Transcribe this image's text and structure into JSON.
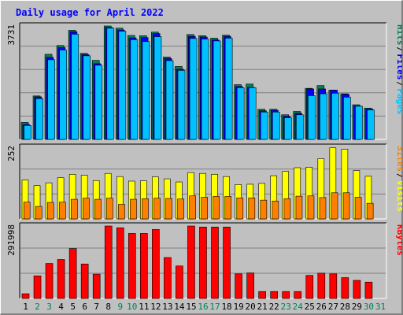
{
  "title": "Daily usage for April 2022",
  "colors": {
    "background": "#c0c0c0",
    "plot_bg": "#c0c0c0",
    "grid": "#808080",
    "title": "#0000ff",
    "hits": "#00805c",
    "files": "#0000ff",
    "pages": "#00c0ff",
    "visits": "#ffff00",
    "sites": "#ff8000",
    "kbytes": "#ff0000",
    "weekday_label": "#000000",
    "weekend_label": "#00805c"
  },
  "chart_data": [
    {
      "type": "bar",
      "panel": "hits-files-pages",
      "categories": [
        "1",
        "2",
        "3",
        "4",
        "5",
        "6",
        "7",
        "8",
        "9",
        "10",
        "11",
        "12",
        "13",
        "14",
        "15",
        "16",
        "17",
        "18",
        "19",
        "20",
        "21",
        "22",
        "23",
        "24",
        "25",
        "26",
        "27",
        "28",
        "29",
        "30",
        "31"
      ],
      "weekend_days": [
        "2",
        "3",
        "9",
        "10",
        "16",
        "17",
        "23",
        "24",
        "30",
        "31"
      ],
      "axis_max_label": "3731",
      "ylim": [
        0,
        3731
      ],
      "legend": [
        "Pages",
        "Files",
        "Hits"
      ],
      "series": [
        {
          "name": "Hits",
          "values": [
            560,
            1430,
            2800,
            3090,
            3590,
            2830,
            2600,
            3731,
            3660,
            3420,
            3410,
            3530,
            2710,
            2400,
            3450,
            3410,
            3330,
            3430,
            1800,
            1820,
            990,
            990,
            810,
            920,
            1680,
            1770,
            1620,
            1500,
            1140,
            1030,
            null
          ]
        },
        {
          "name": "Files",
          "values": [
            490,
            1400,
            2700,
            3020,
            3540,
            2790,
            2490,
            3680,
            3600,
            3340,
            3350,
            3480,
            2660,
            2310,
            3390,
            3370,
            3270,
            3390,
            1740,
            1710,
            940,
            960,
            760,
            860,
            1660,
            1660,
            1620,
            1480,
            1100,
            1000,
            null
          ]
        },
        {
          "name": "Pages",
          "values": [
            460,
            1340,
            2620,
            2940,
            3460,
            2750,
            2440,
            3660,
            3560,
            3280,
            3220,
            3380,
            2590,
            2270,
            3320,
            3300,
            3240,
            3330,
            1700,
            1700,
            900,
            900,
            710,
            810,
            1440,
            1500,
            1520,
            1390,
            1090,
            970,
            null
          ]
        }
      ]
    },
    {
      "type": "bar",
      "panel": "visits-sites",
      "categories": [
        "1",
        "2",
        "3",
        "4",
        "5",
        "6",
        "7",
        "8",
        "9",
        "10",
        "11",
        "12",
        "13",
        "14",
        "15",
        "16",
        "17",
        "18",
        "19",
        "20",
        "21",
        "22",
        "23",
        "24",
        "25",
        "26",
        "27",
        "28",
        "29",
        "30",
        "31"
      ],
      "axis_max_label": "252",
      "ylim": [
        0,
        252
      ],
      "legend": [
        "Visits",
        "Sites"
      ],
      "series": [
        {
          "name": "Visits",
          "values": [
            137,
            117,
            127,
            145,
            157,
            154,
            135,
            160,
            149,
            133,
            134,
            148,
            141,
            130,
            163,
            160,
            157,
            149,
            121,
            122,
            125,
            152,
            167,
            180,
            182,
            212,
            250,
            245,
            170,
            150,
            null
          ]
        },
        {
          "name": "Sites",
          "values": [
            59,
            44,
            58,
            59,
            69,
            73,
            69,
            73,
            51,
            69,
            71,
            73,
            72,
            70,
            81,
            76,
            79,
            79,
            74,
            74,
            66,
            63,
            71,
            80,
            81,
            75,
            92,
            92,
            76,
            55,
            null
          ]
        }
      ]
    },
    {
      "type": "bar",
      "panel": "kbytes",
      "categories": [
        "1",
        "2",
        "3",
        "4",
        "5",
        "6",
        "7",
        "8",
        "9",
        "10",
        "11",
        "12",
        "13",
        "14",
        "15",
        "16",
        "17",
        "18",
        "19",
        "20",
        "21",
        "22",
        "23",
        "24",
        "25",
        "26",
        "27",
        "28",
        "29",
        "30",
        "31"
      ],
      "axis_max_label": "291998",
      "ylim": [
        0,
        291998
      ],
      "legend": [
        "KBytes"
      ],
      "series": [
        {
          "name": "KBytes",
          "values": [
            19000,
            91000,
            141000,
            157000,
            201000,
            139000,
            98000,
            291998,
            285000,
            262000,
            262000,
            278000,
            165000,
            131000,
            291998,
            288000,
            288000,
            288000,
            99000,
            103000,
            28000,
            28000,
            28000,
            28000,
            93000,
            102000,
            99000,
            84000,
            73000,
            66000,
            null
          ]
        }
      ]
    }
  ]
}
